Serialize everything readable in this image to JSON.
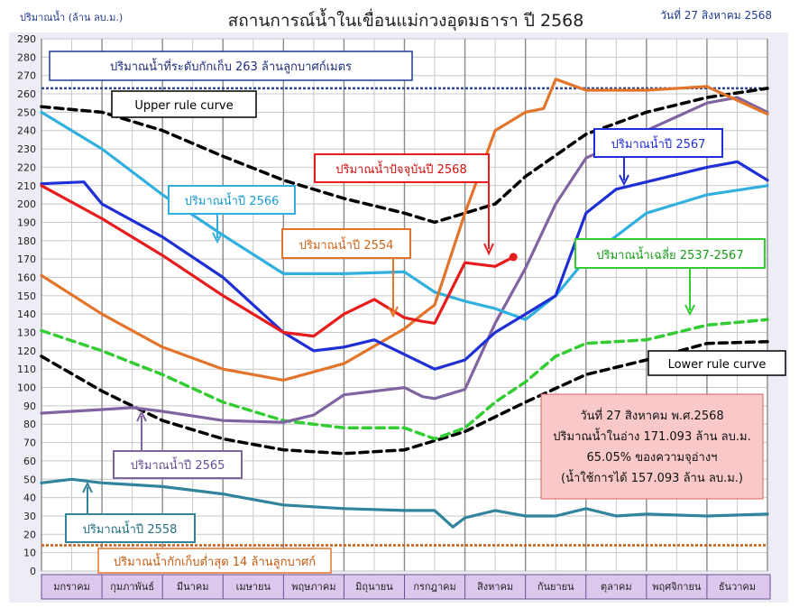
{
  "header": {
    "title": "สถานการณ์น้ำในเขื่อนแม่กวงอุดมธารา  ปี  2568",
    "y_unit": "ปริมาณน้ำ (ล้าน ลบ.ม.)",
    "date": "วันที่ 27 สิงหาคม 2568"
  },
  "annotations": {
    "capacity": "ปริมาณน้ำที่ระดับกักเก็บ 263 ล้านลูกบาศก์เมตร",
    "upper_rule": "Upper rule curve",
    "lower_rule": "Lower rule curve",
    "current": "ปริมาณน้ำปัจจุบันปี 2568",
    "y2567": "ปริมาณน้ำปี 2567",
    "y2566": "ปริมาณน้ำปี 2566",
    "y2554": "ปริมาณน้ำปี 2554",
    "avg": "ปริมาณน้ำเฉลี่ย 2537-2567",
    "y2565": "ปริมาณน้ำปี 2565",
    "y2558": "ปริมาณน้ำปี 2558",
    "min_storage": "ปริมาณน้ำกักเก็บต่ำสุด 14 ล้านลูกบาศก์"
  },
  "info_box": {
    "line1": "วันที่ 27 สิงหาคม พ.ศ.2568",
    "line2": "ปริมาณน้ำในอ่าง 171.093 ล้าน ลบ.ม.",
    "line3": "65.05% ของความจุอ่างฯ",
    "line4": "(น้ำใช้การได้ 157.093 ล้าน ลบ.ม.)"
  },
  "chart_data": {
    "type": "line",
    "ylim": [
      0,
      290
    ],
    "yticks": [
      0,
      10,
      20,
      30,
      40,
      50,
      60,
      70,
      80,
      90,
      100,
      110,
      120,
      130,
      140,
      150,
      160,
      170,
      180,
      190,
      200,
      210,
      220,
      230,
      240,
      250,
      260,
      270,
      280,
      290
    ],
    "categories": [
      "มกราคม",
      "กุมภาพันธ์",
      "มีนาคม",
      "เมษายน",
      "พฤษภาคม",
      "มิถุนายน",
      "กรกฎาคม",
      "สิงหาคม",
      "กันยายน",
      "ตุลาคม",
      "พฤศจิกายน",
      "ธันวาคม"
    ],
    "x_unit": "month (0 = 1 January, 12 = 31 December)",
    "reference_lines": [
      {
        "name": "capacity",
        "value": 263,
        "color": "#2e4a8f"
      },
      {
        "name": "min storage",
        "value": 14,
        "color": "#c55a11"
      }
    ],
    "series": [
      {
        "name": "Upper rule curve",
        "color": "#000000",
        "style": "dashed",
        "x": [
          0,
          1,
          2,
          3,
          4,
          5,
          6,
          6.5,
          7,
          7.5,
          8,
          9,
          10,
          11,
          12
        ],
        "y": [
          253,
          250,
          240,
          226,
          213,
          203,
          195,
          190,
          195,
          200,
          215,
          238,
          250,
          258,
          263
        ]
      },
      {
        "name": "Lower rule curve",
        "color": "#000000",
        "style": "dashed",
        "x": [
          0,
          1,
          2,
          3,
          4,
          5,
          6,
          7,
          8,
          9,
          10,
          11,
          12
        ],
        "y": [
          117,
          98,
          82,
          72,
          66,
          64,
          66,
          76,
          92,
          107,
          115,
          124,
          125
        ]
      },
      {
        "name": "ปริมาณน้ำเฉลี่ย 2537-2567",
        "color": "#33cc33",
        "style": "dashed",
        "x": [
          0,
          1,
          2,
          3,
          4,
          5,
          6,
          6.5,
          7,
          7.5,
          8,
          8.5,
          9,
          10,
          11,
          12
        ],
        "y": [
          131,
          120,
          107,
          92,
          82,
          78,
          78,
          72,
          78,
          92,
          103,
          117,
          124,
          126,
          134,
          137
        ]
      },
      {
        "name": "ปริมาณน้ำปี 2558",
        "color": "#31849b",
        "style": "solid",
        "x": [
          0,
          0.5,
          1,
          2,
          3,
          4,
          5,
          6,
          6.5,
          6.8,
          7,
          7.5,
          8,
          8.5,
          9,
          9.5,
          10,
          11,
          12
        ],
        "y": [
          48,
          50,
          48,
          46,
          42,
          36,
          34,
          33,
          33,
          24,
          29,
          33,
          30,
          30,
          34,
          30,
          31,
          30,
          31
        ]
      },
      {
        "name": "ปริมาณน้ำปี 2565",
        "color": "#8064a2",
        "style": "solid",
        "x": [
          0,
          1,
          1.5,
          2,
          3,
          4,
          4.5,
          5,
          6,
          6.3,
          6.5,
          7,
          7.5,
          8,
          8.5,
          9,
          10,
          11,
          11.5,
          12
        ],
        "y": [
          86,
          88,
          89,
          87,
          82,
          81,
          85,
          96,
          100,
          95,
          94,
          99,
          135,
          165,
          200,
          225,
          240,
          255,
          258,
          250
        ]
      },
      {
        "name": "ปริมาณน้ำปี 2566",
        "color": "#31b0e0",
        "style": "solid",
        "x": [
          0,
          1,
          2,
          3,
          4,
          5,
          6,
          6.5,
          7,
          7.5,
          8,
          8.5,
          9,
          10,
          11,
          12
        ],
        "y": [
          250,
          230,
          205,
          183,
          162,
          162,
          163,
          152,
          147,
          143,
          137,
          150,
          170,
          195,
          205,
          210
        ]
      },
      {
        "name": "ปริมาณน้ำปี 2554",
        "color": "#e2752b",
        "style": "solid",
        "x": [
          0,
          1,
          2,
          3,
          4,
          5,
          6,
          6.3,
          6.5,
          7,
          7.5,
          8,
          8.3,
          8.5,
          9,
          10,
          11,
          12
        ],
        "y": [
          161,
          140,
          122,
          110,
          104,
          113,
          132,
          140,
          145,
          195,
          240,
          250,
          252,
          268,
          262,
          262,
          264,
          249
        ]
      },
      {
        "name": "ปริมาณน้ำปี 2567",
        "color": "#1f2fd6",
        "style": "solid",
        "x": [
          0,
          0.7,
          1,
          2,
          3,
          4,
          4.5,
          5,
          5.5,
          6,
          6.5,
          7,
          7.5,
          8,
          8.5,
          9,
          9.5,
          10,
          11,
          11.5,
          12
        ],
        "y": [
          211,
          212,
          200,
          182,
          160,
          130,
          120,
          122,
          126,
          118,
          110,
          115,
          130,
          140,
          150,
          195,
          208,
          212,
          220,
          223,
          213
        ]
      },
      {
        "name": "ปริมาณน้ำปัจจุบันปี 2568",
        "color": "#e81c1c",
        "style": "solid",
        "x": [
          0,
          1,
          2,
          3,
          4,
          4.5,
          5,
          5.5,
          6,
          6.3,
          6.5,
          7,
          7.5,
          7.8
        ],
        "y": [
          210,
          192,
          172,
          150,
          130,
          128,
          140,
          148,
          138,
          136,
          135,
          168,
          166,
          171.093
        ]
      }
    ]
  }
}
